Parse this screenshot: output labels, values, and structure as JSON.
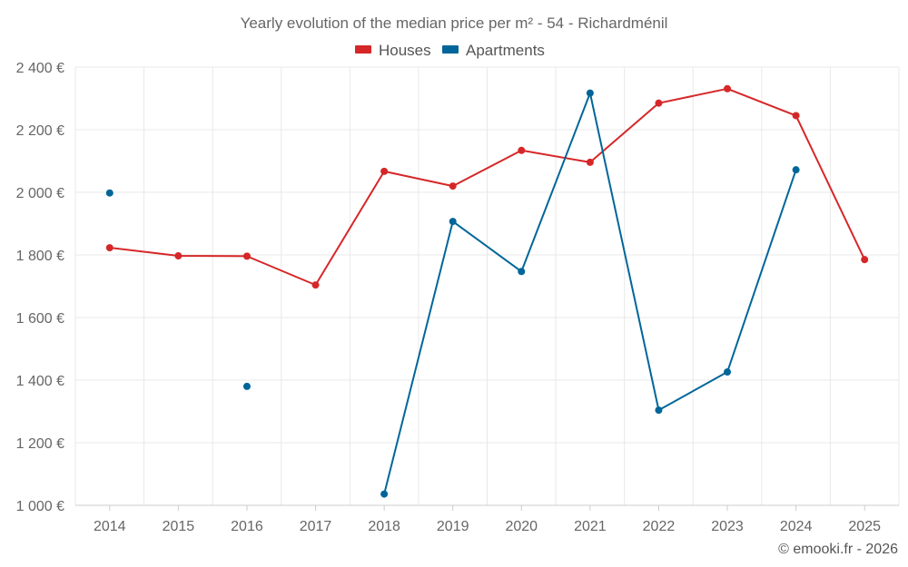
{
  "chart_data": {
    "type": "line",
    "title": "Yearly evolution of the median price per m² - 54 - Richardménil",
    "categories": [
      "2014",
      "2015",
      "2016",
      "2017",
      "2018",
      "2019",
      "2020",
      "2021",
      "2022",
      "2023",
      "2024",
      "2025"
    ],
    "series": [
      {
        "name": "Houses",
        "color": "#d62728",
        "values": [
          1823,
          1797,
          1796,
          1704,
          2067,
          2020,
          2134,
          2096,
          2285,
          2331,
          2245,
          1785
        ]
      },
      {
        "name": "Apartments",
        "color": "#006699",
        "values": [
          1998,
          null,
          1380,
          null,
          1036,
          1907,
          1747,
          2317,
          1304,
          1426,
          2072,
          null
        ]
      }
    ],
    "ylim": [
      1000,
      2400
    ],
    "yticks": [
      1000,
      1200,
      1400,
      1600,
      1800,
      2000,
      2200,
      2400
    ],
    "ytick_labels": [
      "1 000 €",
      "1 200 €",
      "1 400 €",
      "1 600 €",
      "1 800 €",
      "2 000 €",
      "2 200 €",
      "2 400 €"
    ],
    "xlabel": "",
    "ylabel": "",
    "grid": true,
    "legend_position": "top-center"
  },
  "credit": "© emooki.fr - 2026"
}
